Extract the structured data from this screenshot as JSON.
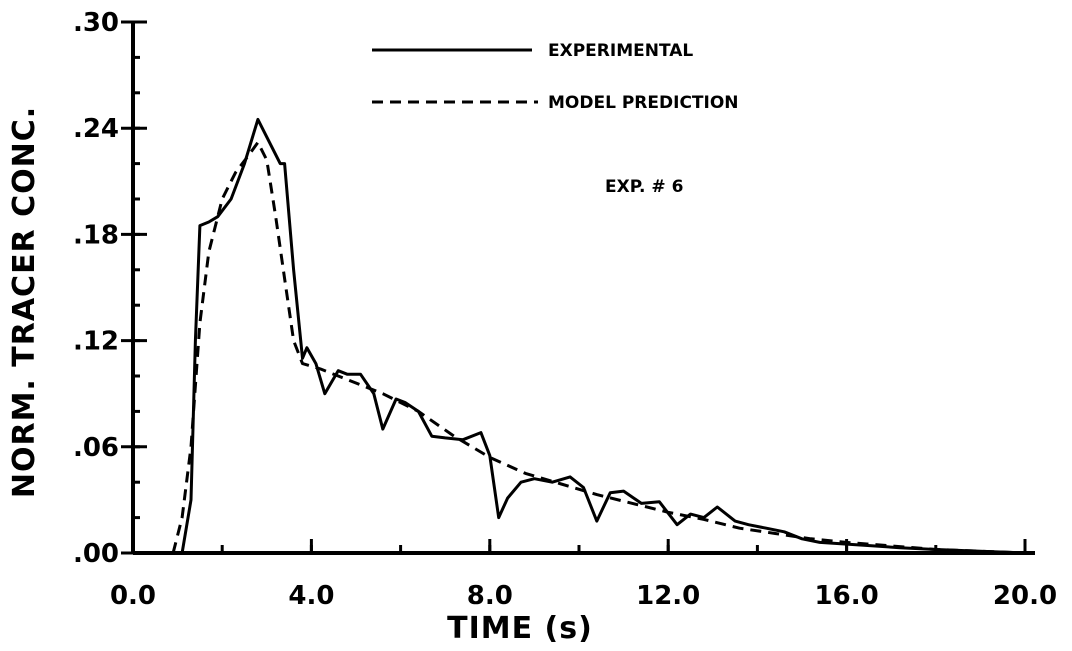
{
  "chart_data": {
    "type": "line",
    "title": "",
    "xlabel": "TIME (s)",
    "ylabel": "NORM. TRACER CONC.",
    "xlim": [
      0,
      20
    ],
    "ylim": [
      0,
      0.3
    ],
    "x_ticks": [
      0,
      4,
      8,
      12,
      16,
      20
    ],
    "x_tick_labels": [
      "0.0",
      "4.0",
      "8.0",
      "12.0",
      "16.0",
      "20.0"
    ],
    "y_ticks": [
      0,
      0.06,
      0.12,
      0.18,
      0.24,
      0.3
    ],
    "y_tick_labels": [
      ".00",
      ".06",
      ".12",
      ".18",
      ".24",
      ".30"
    ],
    "grid": false,
    "legend_position": "top-right",
    "annotation": "EXP. # 6",
    "series": [
      {
        "name": "EXPERIMENTAL",
        "style": "solid",
        "x": [
          1.1,
          1.3,
          1.4,
          1.5,
          1.7,
          1.9,
          2.2,
          2.5,
          2.8,
          3.0,
          3.3,
          3.4,
          3.6,
          3.8,
          3.9,
          4.1,
          4.3,
          4.6,
          4.8,
          5.1,
          5.4,
          5.6,
          5.9,
          6.1,
          6.4,
          6.7,
          7.0,
          7.4,
          7.8,
          8.0,
          8.2,
          8.4,
          8.7,
          9.0,
          9.4,
          9.8,
          10.1,
          10.4,
          10.7,
          11.0,
          11.4,
          11.8,
          12.2,
          12.5,
          12.8,
          13.1,
          13.5,
          13.8,
          14.2,
          14.6,
          15.0,
          15.4,
          16.0,
          16.6,
          17.2,
          18.0,
          19.0,
          20.0
        ],
        "y": [
          0.0,
          0.03,
          0.12,
          0.185,
          0.187,
          0.19,
          0.2,
          0.22,
          0.245,
          0.235,
          0.22,
          0.22,
          0.16,
          0.11,
          0.116,
          0.107,
          0.09,
          0.103,
          0.101,
          0.101,
          0.09,
          0.07,
          0.087,
          0.085,
          0.08,
          0.066,
          0.065,
          0.064,
          0.068,
          0.055,
          0.02,
          0.031,
          0.04,
          0.042,
          0.04,
          0.043,
          0.037,
          0.018,
          0.034,
          0.035,
          0.028,
          0.029,
          0.016,
          0.022,
          0.02,
          0.026,
          0.018,
          0.016,
          0.014,
          0.012,
          0.008,
          0.006,
          0.005,
          0.004,
          0.003,
          0.002,
          0.001,
          0.0
        ]
      },
      {
        "name": "MODEL PREDICTION",
        "style": "dashed",
        "x": [
          0.9,
          1.1,
          1.3,
          1.5,
          1.7,
          2.0,
          2.3,
          2.6,
          2.8,
          3.0,
          3.2,
          3.4,
          3.6,
          3.8,
          4.2,
          4.8,
          5.6,
          6.4,
          7.2,
          8.0,
          8.8,
          9.6,
          10.4,
          11.2,
          12.0,
          12.8,
          13.6,
          14.4,
          15.2,
          16.0,
          17.0,
          18.0,
          19.0,
          20.0
        ],
        "y": [
          0.0,
          0.02,
          0.06,
          0.13,
          0.17,
          0.2,
          0.215,
          0.225,
          0.232,
          0.222,
          0.19,
          0.155,
          0.12,
          0.107,
          0.104,
          0.098,
          0.09,
          0.08,
          0.066,
          0.054,
          0.045,
          0.039,
          0.033,
          0.028,
          0.023,
          0.019,
          0.014,
          0.011,
          0.008,
          0.006,
          0.004,
          0.002,
          0.001,
          0.0
        ]
      }
    ]
  }
}
